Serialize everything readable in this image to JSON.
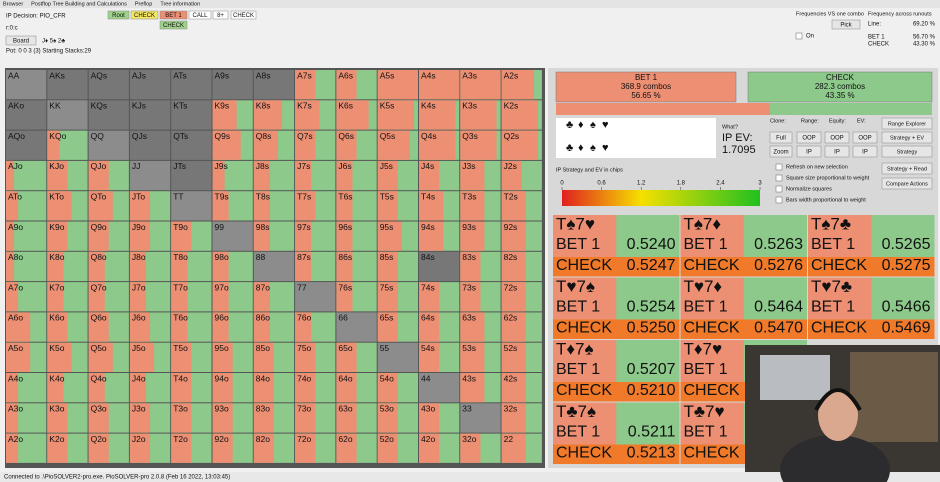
{
  "menu": [
    "Browser",
    "Postflop Tree Building and Calculations",
    "Preflop",
    "Tree information"
  ],
  "info": {
    "decision": "IP Decision:  PIO_CFR",
    "line": "r:0:c",
    "board_button": "Board",
    "board": "J♦ 5♠ 2♣",
    "pot": "Pot: 0 0 3 (3) Starting Stacks:29"
  },
  "actions": [
    "Root",
    "CHECK",
    "BET 1",
    "CALL",
    "8+",
    "CHECK"
  ],
  "sub_action": "CHECK",
  "freq": {
    "title": "Frequencies VS one combo",
    "pick": "Pick",
    "on": "On",
    "runouts": "Frequency across runouts",
    "line": "Line:",
    "line_value": "69.20 %",
    "bet": "BET 1",
    "check": "CHECK",
    "bet_value": "56.70 %",
    "check_value": "43.30 %"
  },
  "grid": {
    "hands": [
      [
        "AA",
        "AKs",
        "AQs",
        "AJs",
        "ATs",
        "A9s",
        "A8s",
        "A7s",
        "A6s",
        "A5s",
        "A4s",
        "A3s",
        "A2s"
      ],
      [
        "AKo",
        "KK",
        "KQs",
        "KJs",
        "KTs",
        "K9s",
        "K8s",
        "K7s",
        "K6s",
        "K5s",
        "K4s",
        "K3s",
        "K2s"
      ],
      [
        "AQo",
        "KQo",
        "QQ",
        "QJs",
        "QTs",
        "Q9s",
        "Q8s",
        "Q7s",
        "Q6s",
        "Q5s",
        "Q4s",
        "Q3s",
        "Q2s"
      ],
      [
        "AJo",
        "KJo",
        "QJo",
        "JJ",
        "JTs",
        "J9s",
        "J8s",
        "J7s",
        "J6s",
        "J5s",
        "J4s",
        "J3s",
        "J2s"
      ],
      [
        "ATo",
        "KTo",
        "QTo",
        "JTo",
        "TT",
        "T9s",
        "T8s",
        "T7s",
        "T6s",
        "T5s",
        "T4s",
        "T3s",
        "T2s"
      ],
      [
        "A9o",
        "K9o",
        "Q9o",
        "J9o",
        "T9o",
        "99",
        "98s",
        "97s",
        "96s",
        "95s",
        "94s",
        "93s",
        "92s"
      ],
      [
        "A8o",
        "K8o",
        "Q8o",
        "J8o",
        "T8o",
        "98o",
        "88",
        "87s",
        "86s",
        "85s",
        "84s",
        "83s",
        "82s"
      ],
      [
        "A7o",
        "K7o",
        "Q7o",
        "J7o",
        "T7o",
        "97o",
        "87o",
        "77",
        "76s",
        "75s",
        "74s",
        "73s",
        "72s"
      ],
      [
        "A6o",
        "K6o",
        "Q6o",
        "J6o",
        "T6o",
        "96o",
        "86o",
        "76o",
        "66",
        "65s",
        "64s",
        "63s",
        "62s"
      ],
      [
        "A5o",
        "K5o",
        "Q5o",
        "J5o",
        "T5o",
        "95o",
        "85o",
        "75o",
        "65o",
        "55",
        "54s",
        "53s",
        "52s"
      ],
      [
        "A4o",
        "K4o",
        "Q4o",
        "J4o",
        "T4o",
        "94o",
        "84o",
        "74o",
        "64o",
        "54o",
        "44",
        "43s",
        "42s"
      ],
      [
        "A3o",
        "K3o",
        "Q3o",
        "J3o",
        "T3o",
        "93o",
        "83o",
        "73o",
        "63o",
        "53o",
        "43o",
        "33",
        "32s"
      ],
      [
        "A2o",
        "K2o",
        "Q2o",
        "J2o",
        "T2o",
        "92o",
        "82o",
        "72o",
        "62o",
        "52o",
        "42o",
        "32o",
        "22"
      ]
    ],
    "bet_freq": [
      [
        null,
        null,
        null,
        null,
        null,
        null,
        null,
        0.5,
        0.5,
        1,
        1,
        1,
        0.8
      ],
      [
        null,
        null,
        null,
        null,
        null,
        0.6,
        0.7,
        0.6,
        0.8,
        0.9,
        0.9,
        0.9,
        0.9
      ],
      [
        null,
        0.3,
        null,
        null,
        null,
        0.7,
        0.6,
        0.5,
        0.5,
        0.8,
        0.9,
        0.9,
        0.9
      ],
      [
        0.2,
        0.5,
        0.5,
        null,
        null,
        0.3,
        0.4,
        0.4,
        0.4,
        0.5,
        0.5,
        0.6,
        0.5
      ],
      [
        0.3,
        0.6,
        0.6,
        0.5,
        null,
        0.4,
        0.4,
        0.5,
        0.4,
        0.5,
        0.6,
        0.6,
        0.6
      ],
      [
        0.2,
        0.5,
        0.5,
        0.5,
        0.5,
        null,
        0.4,
        0.4,
        0.4,
        0.6,
        0.6,
        0.6,
        0.6
      ],
      [
        0.2,
        0.4,
        0.4,
        0.4,
        0.4,
        0.4,
        null,
        0.4,
        0.4,
        0.5,
        null,
        0.5,
        0.6
      ],
      [
        0.3,
        0.4,
        0.4,
        0.4,
        0.4,
        0.4,
        0.4,
        null,
        0.4,
        0.5,
        0.5,
        0.5,
        0.6
      ],
      [
        0.6,
        0.5,
        0.5,
        0.5,
        0.4,
        0.4,
        0.4,
        0.4,
        null,
        0.5,
        0.5,
        0.6,
        0.6
      ],
      [
        0.6,
        0.6,
        0.6,
        0.6,
        0.5,
        0.5,
        0.5,
        0.5,
        0.5,
        null,
        0.5,
        0.6,
        0.6
      ],
      [
        0.3,
        0.4,
        0.4,
        0.4,
        0.5,
        0.5,
        0.5,
        0.5,
        0.5,
        0.5,
        null,
        0.6,
        0.6
      ],
      [
        0.3,
        0.5,
        0.5,
        0.5,
        0.5,
        0.5,
        0.5,
        0.5,
        0.5,
        0.5,
        0.5,
        null,
        0.6
      ],
      [
        0.3,
        0.5,
        0.5,
        0.5,
        0.5,
        0.5,
        0.5,
        0.5,
        0.5,
        0.5,
        0.5,
        0.5,
        0.6
      ]
    ]
  },
  "summary": {
    "bet": {
      "name": "BET 1",
      "combos": "368.9 combos",
      "pct": "56.65 %"
    },
    "check": {
      "name": "CHECK",
      "combos": "282.3 combos",
      "pct": "43.35 %"
    }
  },
  "ev": {
    "what": "What?",
    "label": "IP EV:",
    "value": "1.7095"
  },
  "controls": {
    "clone": "Clone:",
    "range": "Range:",
    "equity": "Equity:",
    "ev": "EV:",
    "full": "Full",
    "zoom": "Zoom",
    "oop": "OOP",
    "ip": "IP",
    "buttons": [
      "Range Explorer",
      "Strategy + EV",
      "Strategy",
      "Strategy + Read",
      "Compare Actions"
    ],
    "checks": [
      "Refresh on new selection",
      "Square size proportional to weight",
      "Normalize squares",
      "Bars width proportional to weight"
    ]
  },
  "scale": {
    "title": "IP Strategy and EV in chips",
    "ticks": [
      0,
      0.6,
      1.2,
      1.8,
      2.4,
      3
    ]
  },
  "combos": [
    {
      "cards": "T♠7♥",
      "bet": "BET 1",
      "bet_ev": "0.5240",
      "check": "CHECK",
      "check_ev": "0.5247"
    },
    {
      "cards": "T♠7♦",
      "bet": "BET 1",
      "bet_ev": "0.5263",
      "check": "CHECK",
      "check_ev": "0.5276"
    },
    {
      "cards": "T♠7♣",
      "bet": "BET 1",
      "bet_ev": "0.5265",
      "check": "CHECK",
      "check_ev": "0.5275"
    },
    {
      "cards": "T♥7♠",
      "bet": "BET 1",
      "bet_ev": "0.5254",
      "check": "CHECK",
      "check_ev": "0.5250"
    },
    {
      "cards": "T♥7♦",
      "bet": "BET 1",
      "bet_ev": "0.5464",
      "check": "CHECK",
      "check_ev": "0.5470"
    },
    {
      "cards": "T♥7♣",
      "bet": "BET 1",
      "bet_ev": "0.5466",
      "check": "CHECK",
      "check_ev": "0.5469"
    },
    {
      "cards": "T♦7♠",
      "bet": "BET 1",
      "bet_ev": "0.5207",
      "check": "CHECK",
      "check_ev": "0.5210"
    },
    {
      "cards": "T♦7♥",
      "bet": "BET 1",
      "check": "CHECK"
    },
    null,
    {
      "cards": "T♣7♠",
      "bet": "BET 1",
      "bet_ev": "0.5211",
      "check": "CHECK",
      "check_ev": "0.5213"
    },
    {
      "cards": "T♣7♥",
      "bet": "BET 1",
      "check": "CHECK"
    },
    null
  ],
  "status": "Connected to .\\PioSOLVER2-pro.exe. PioSOLVER-pro 2.0.8 (Feb 16 2022, 13:03:45)"
}
